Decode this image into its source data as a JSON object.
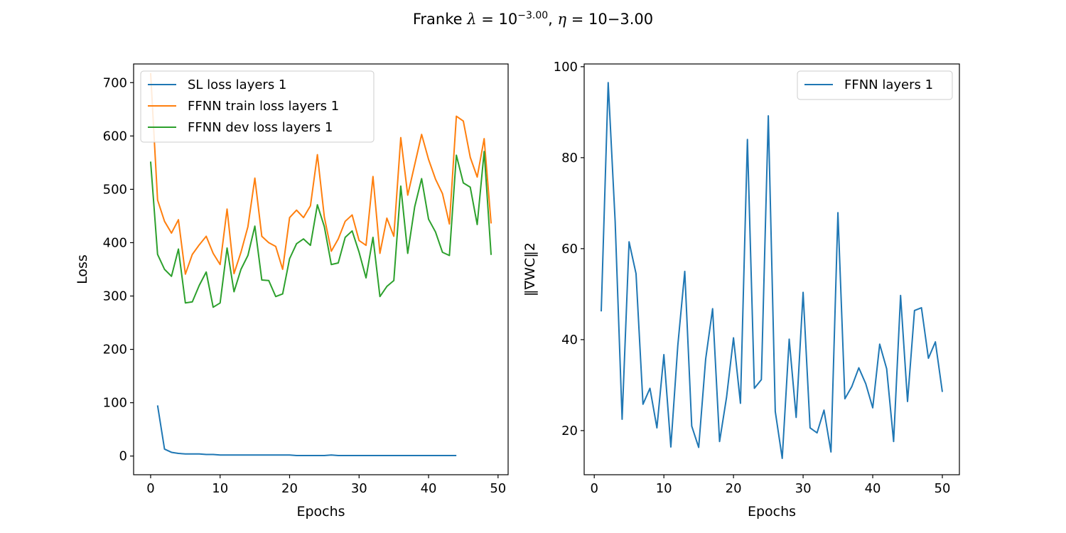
{
  "figure": {
    "title_prefix": "Franke ",
    "title_lambda_symbol": "λ",
    "title_lambda_eq": " = 10",
    "title_lambda_exp": "−3.00",
    "title_sep": ", ",
    "title_eta_symbol": "η",
    "title_eta_eq": " = 10−3.00"
  },
  "chart_data": [
    {
      "type": "line",
      "xlabel": "Epochs",
      "ylabel": "Loss",
      "xlim": [
        -2.45,
        51.45
      ],
      "ylim": [
        -35,
        735
      ],
      "xticks": [
        0,
        10,
        20,
        30,
        40,
        50
      ],
      "yticks": [
        0,
        100,
        200,
        300,
        400,
        500,
        600,
        700
      ],
      "legend_position": "top-left",
      "series": [
        {
          "name": "SL loss layers 1",
          "color": "#1f77b4",
          "x": [
            1,
            2,
            3,
            4,
            5,
            6,
            7,
            8,
            9,
            10,
            11,
            12,
            13,
            14,
            15,
            16,
            17,
            18,
            19,
            20,
            21,
            22,
            23,
            24,
            25,
            26,
            27,
            28,
            29,
            30,
            31,
            32,
            33,
            34,
            35,
            36,
            37,
            38,
            39,
            40,
            41,
            42,
            43,
            44
          ],
          "y": [
            95,
            13,
            7,
            5,
            4,
            4,
            4,
            3,
            3,
            2,
            2,
            2,
            2,
            2,
            2,
            2,
            2,
            2,
            2,
            2,
            1,
            1,
            1,
            1,
            1,
            2,
            1,
            1,
            1,
            1,
            1,
            1,
            1,
            1,
            1,
            1,
            1,
            1,
            1,
            1,
            1,
            1,
            1,
            1
          ]
        },
        {
          "name": "FFNN train loss layers 1",
          "color": "#ff7f0e",
          "x": [
            0,
            1,
            2,
            3,
            4,
            5,
            6,
            7,
            8,
            9,
            10,
            11,
            12,
            13,
            14,
            15,
            16,
            17,
            18,
            19,
            20,
            21,
            22,
            23,
            24,
            25,
            26,
            27,
            28,
            29,
            30,
            31,
            32,
            33,
            34,
            35,
            36,
            37,
            38,
            39,
            40,
            41,
            42,
            43,
            44,
            45,
            46,
            47,
            48,
            49
          ],
          "y": [
            718,
            480,
            440,
            418,
            443,
            341,
            378,
            396,
            412,
            380,
            359,
            463,
            342,
            382,
            430,
            521,
            412,
            400,
            393,
            350,
            447,
            461,
            447,
            469,
            565,
            448,
            384,
            407,
            440,
            452,
            404,
            395,
            524,
            380,
            446,
            412,
            597,
            489,
            546,
            603,
            556,
            519,
            492,
            435,
            637,
            628,
            560,
            523,
            595,
            436
          ]
        },
        {
          "name": "FFNN dev loss layers 1",
          "color": "#2ca02c",
          "x": [
            0,
            1,
            2,
            3,
            4,
            5,
            6,
            7,
            8,
            9,
            10,
            11,
            12,
            13,
            14,
            15,
            16,
            17,
            18,
            19,
            20,
            21,
            22,
            23,
            24,
            25,
            26,
            27,
            28,
            29,
            30,
            31,
            32,
            33,
            34,
            35,
            36,
            37,
            38,
            39,
            40,
            41,
            42,
            43,
            44,
            45,
            46,
            47,
            48,
            49
          ],
          "y": [
            552,
            378,
            350,
            337,
            388,
            287,
            289,
            320,
            345,
            279,
            287,
            390,
            308,
            350,
            376,
            431,
            330,
            329,
            299,
            304,
            370,
            398,
            407,
            395,
            471,
            430,
            359,
            362,
            410,
            422,
            382,
            334,
            410,
            299,
            318,
            329,
            506,
            380,
            467,
            520,
            444,
            420,
            382,
            376,
            564,
            512,
            504,
            434,
            571,
            377
          ]
        }
      ]
    },
    {
      "type": "line",
      "xlabel": "Epochs",
      "ylabel": "‖∇WC‖2",
      "xlim": [
        -1.45,
        52.45
      ],
      "ylim": [
        10.3,
        100.6
      ],
      "xticks": [
        0,
        10,
        20,
        30,
        40,
        50
      ],
      "yticks": [
        20,
        40,
        60,
        80,
        100
      ],
      "legend_position": "top-right",
      "series": [
        {
          "name": "FFNN layers 1",
          "color": "#1f77b4",
          "x": [
            1,
            2,
            3,
            4,
            5,
            6,
            7,
            8,
            9,
            10,
            11,
            12,
            13,
            14,
            15,
            16,
            17,
            18,
            19,
            20,
            21,
            22,
            23,
            24,
            25,
            26,
            27,
            28,
            29,
            30,
            31,
            32,
            33,
            34,
            35,
            36,
            37,
            38,
            39,
            40,
            41,
            42,
            43,
            44,
            45,
            46,
            47,
            48,
            49,
            50
          ],
          "y": [
            46.2,
            96.5,
            66.0,
            22.5,
            61.5,
            54.5,
            25.8,
            29.3,
            20.6,
            36.7,
            16.4,
            38.7,
            55.0,
            21.0,
            16.3,
            35.7,
            46.8,
            17.6,
            27.3,
            40.4,
            26.0,
            84.0,
            29.3,
            31.2,
            89.2,
            24.2,
            13.9,
            40.1,
            22.9,
            50.4,
            20.6,
            19.5,
            24.5,
            15.3,
            67.9,
            27.0,
            29.7,
            33.8,
            30.3,
            25.0,
            39.0,
            33.6,
            17.6,
            49.7,
            26.4,
            46.4,
            47.0,
            35.9,
            39.5,
            28.5
          ]
        }
      ]
    }
  ]
}
